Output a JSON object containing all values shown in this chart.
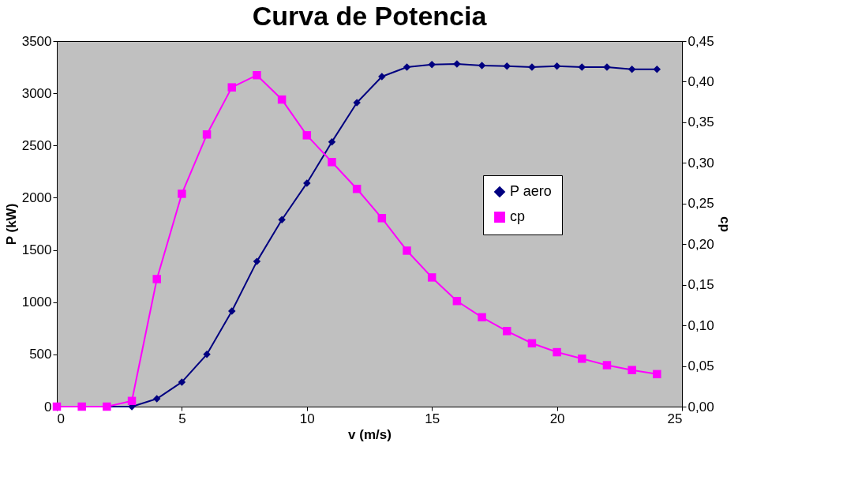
{
  "chart_data": {
    "type": "line",
    "title": "Curva de Potencia",
    "xlabel": "v (m/s)",
    "ylabel": "P (kW)",
    "y2label": "cp",
    "x": [
      0,
      1,
      2,
      3,
      4,
      5,
      6,
      7,
      8,
      9,
      10,
      11,
      12,
      13,
      14,
      15,
      16,
      17,
      18,
      19,
      20,
      21,
      22,
      23,
      24
    ],
    "series": [
      {
        "name": "P aero",
        "color": "#000080",
        "marker": "diamond",
        "values": [
          0,
          0,
          0,
          0,
          75,
          235,
          500,
          915,
          1390,
          1790,
          2140,
          2535,
          2910,
          3160,
          3250,
          3275,
          3280,
          3265,
          3260,
          3250,
          3260,
          3250,
          3250,
          3230,
          3230
        ]
      },
      {
        "name": "cp",
        "color": "#ff00ff",
        "marker": "square",
        "axis": "y2",
        "values": [
          0,
          0,
          0,
          0.007,
          0.157,
          0.262,
          0.335,
          0.393,
          0.408,
          0.378,
          0.334,
          0.301,
          0.268,
          0.232,
          0.192,
          0.159,
          0.13,
          0.11,
          0.093,
          0.078,
          0.067,
          0.059,
          0.051,
          0.045,
          0.04
        ]
      }
    ],
    "xlim": [
      0,
      25
    ],
    "xticks": [
      0,
      5,
      10,
      15,
      20,
      25
    ],
    "ylim": [
      0,
      3500
    ],
    "yticks": [
      0,
      500,
      1000,
      1500,
      2000,
      2500,
      3000,
      3500
    ],
    "y2lim": [
      0,
      0.45
    ],
    "y2ticks": [
      {
        "value": 0,
        "label": "0,00"
      },
      {
        "value": 0.05,
        "label": "0,05"
      },
      {
        "value": 0.1,
        "label": "0,10"
      },
      {
        "value": 0.15,
        "label": "0,15"
      },
      {
        "value": 0.2,
        "label": "0,20"
      },
      {
        "value": 0.25,
        "label": "0,25"
      },
      {
        "value": 0.3,
        "label": "0,30"
      },
      {
        "value": 0.35,
        "label": "0,35"
      },
      {
        "value": 0.4,
        "label": "0,40"
      },
      {
        "value": 0.45,
        "label": "0,45"
      }
    ],
    "grid": false,
    "legend": "right",
    "line_style": "solid"
  }
}
